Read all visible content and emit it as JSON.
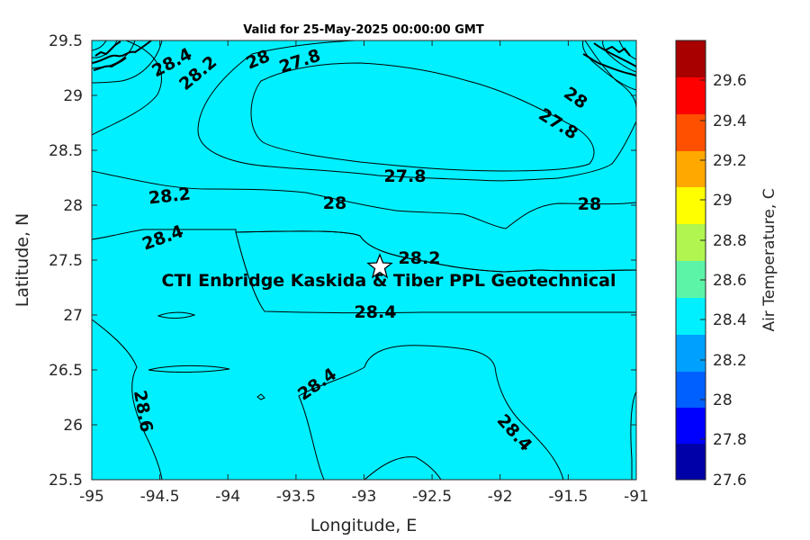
{
  "title": "Valid for 25-May-2025 00:00:00 GMT",
  "xlabel": "Longitude, E",
  "ylabel": "Latitude, N",
  "colorbar_label": "Air Temperature, C",
  "xticks": [
    "-95",
    "-94.5",
    "-94",
    "-93.5",
    "-93",
    "-92.5",
    "-92",
    "-91.5",
    "-91"
  ],
  "yticks": [
    "29.5",
    "29",
    "28.5",
    "28",
    "27.5",
    "27",
    "26.5",
    "26",
    "25.5"
  ],
  "colorbar_ticks": [
    "29.6",
    "29.4",
    "29.2",
    "29",
    "28.8",
    "28.6",
    "28.4",
    "28.2",
    "28",
    "27.8",
    "27.6"
  ],
  "site_label": "CTI Enbridge  Kaskida & Tiber PPL Geotechnical",
  "site_marker": "star-icon",
  "contour_labels": [
    "28.4",
    "28.2",
    "28",
    "27.8",
    "28",
    "27.8",
    "27.8",
    "28.2",
    "28",
    "28",
    "28.4",
    "28.2",
    "28.4",
    "28.4",
    "28.6",
    "28.4"
  ],
  "chart_data": {
    "type": "heatmap",
    "title": "Valid for 25-May-2025 00:00:00 GMT",
    "xlabel": "Longitude, E",
    "ylabel": "Latitude, N",
    "xlim": [
      -95,
      -91
    ],
    "ylim": [
      25.5,
      29.5
    ],
    "colorbar": {
      "label": "Air Temperature, C",
      "min": 27.6,
      "max": 29.8,
      "levels": [
        27.6,
        27.8,
        28.0,
        28.2,
        28.4,
        28.6,
        28.8,
        29.0,
        29.2,
        29.4,
        29.6,
        29.8
      ],
      "colors": [
        "#0000a8",
        "#0000ff",
        "#0060ff",
        "#00a0ff",
        "#00f0ff",
        "#5cf5a8",
        "#b0f550",
        "#ffff00",
        "#ffa800",
        "#ff5000",
        "#ff0000",
        "#a80000"
      ]
    },
    "site": {
      "lon": -92.87,
      "lat": 27.43,
      "label": "CTI Enbridge  Kaskida & Tiber PPL Geotechnical"
    }
  }
}
